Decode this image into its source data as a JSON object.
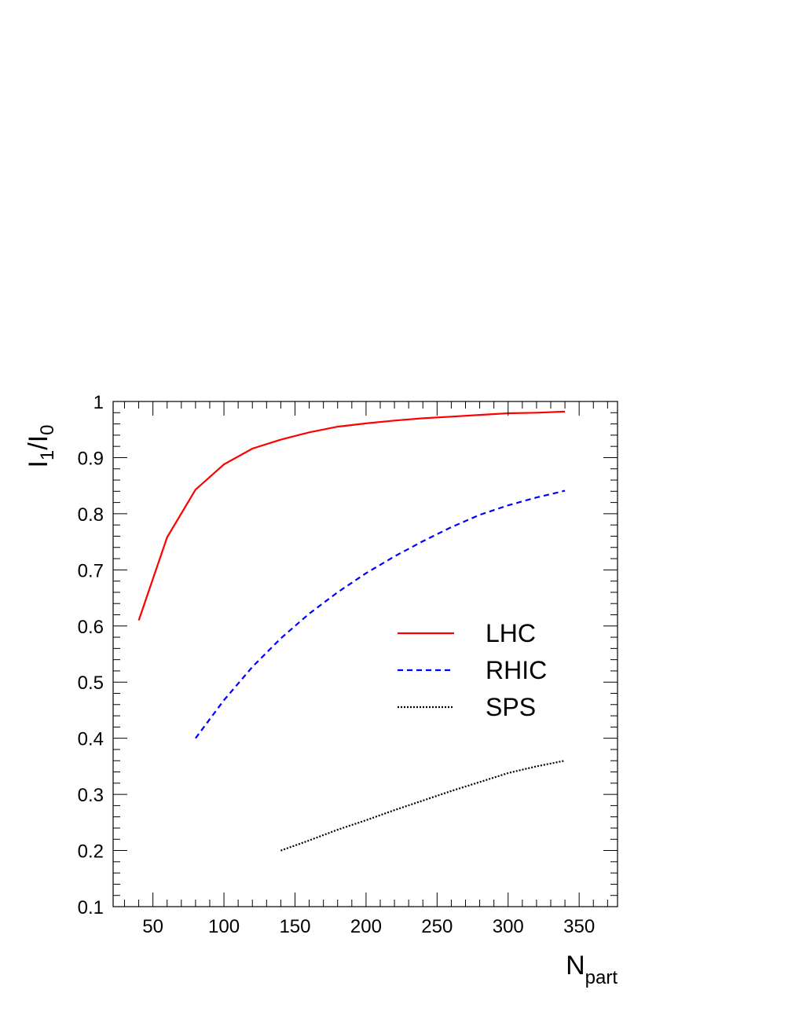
{
  "chart_data": {
    "type": "line",
    "title": "",
    "xlabel": {
      "main": "N",
      "sub": "part"
    },
    "ylabel": {
      "main1": "I",
      "sub1": "1",
      "slash": "/",
      "main2": "I",
      "sub2": "0"
    },
    "xlim": [
      22,
      377
    ],
    "ylim": [
      0.1,
      1.0
    ],
    "xticks": [
      50,
      100,
      150,
      200,
      250,
      300,
      350
    ],
    "xtick_labels": [
      "50",
      "100",
      "150",
      "200",
      "250",
      "300",
      "350"
    ],
    "yticks": [
      0.1,
      0.2,
      0.3,
      0.4,
      0.5,
      0.6,
      0.7,
      0.8,
      0.9,
      1.0
    ],
    "ytick_labels": [
      "0.1",
      "0.2",
      "0.3",
      "0.4",
      "0.5",
      "0.6",
      "0.7",
      "0.8",
      "0.9",
      "1"
    ],
    "grid": false,
    "legend_position": "right-middle",
    "series": [
      {
        "name": "LHC",
        "color": "#ff0000",
        "style": "solid",
        "x": [
          40,
          60,
          80,
          100,
          120,
          140,
          160,
          180,
          200,
          220,
          240,
          260,
          280,
          300,
          320,
          340
        ],
        "y": [
          0.61,
          0.758,
          0.843,
          0.888,
          0.916,
          0.932,
          0.945,
          0.955,
          0.961,
          0.966,
          0.97,
          0.973,
          0.976,
          0.979,
          0.98,
          0.982
        ]
      },
      {
        "name": "RHIC",
        "color": "#0000ff",
        "style": "dashed",
        "x": [
          80,
          100,
          120,
          140,
          160,
          180,
          200,
          220,
          240,
          260,
          280,
          300,
          320,
          340
        ],
        "y": [
          0.4,
          0.468,
          0.527,
          0.578,
          0.622,
          0.66,
          0.694,
          0.724,
          0.751,
          0.776,
          0.798,
          0.815,
          0.829,
          0.841
        ]
      },
      {
        "name": "SPS",
        "color": "#000000",
        "style": "dotted",
        "x": [
          140,
          160,
          180,
          200,
          220,
          240,
          260,
          280,
          300,
          320,
          340
        ],
        "y": [
          0.2,
          0.218,
          0.237,
          0.254,
          0.272,
          0.289,
          0.306,
          0.322,
          0.338,
          0.35,
          0.36
        ]
      }
    ]
  }
}
